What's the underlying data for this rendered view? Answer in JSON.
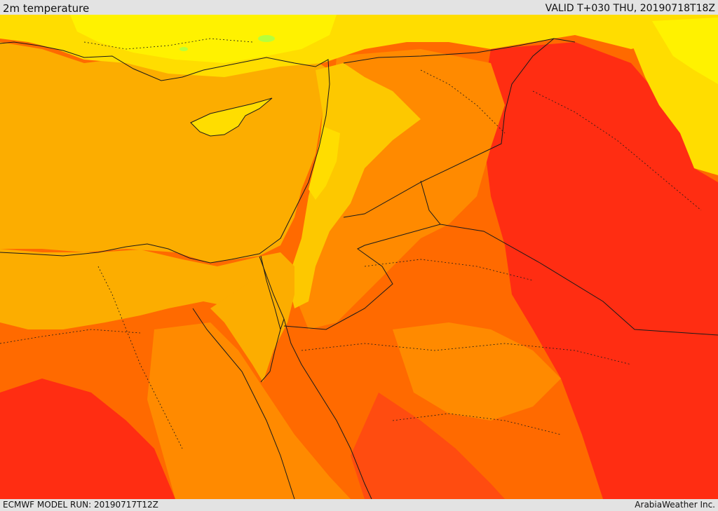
{
  "header": {
    "title": "2m temperature",
    "valid": "VALID T+030 THU, 20190718T18Z"
  },
  "footer": {
    "model_run": "ECMWF MODEL RUN: 20190717T12Z",
    "credit": "ArabiaWeather Inc."
  },
  "map": {
    "field": "2m temperature",
    "colors": {
      "sea_orange": "#fcad00",
      "cool_yellow": "#fff200",
      "light_yellow": "#ffdd00",
      "gold": "#fdc800",
      "orange": "#ff8a00",
      "deep_orange": "#ff6a00",
      "red_orange": "#ff4c10",
      "red": "#ff2d12",
      "green_spot": "#b6ff3c",
      "border_line": "#1a1a1a"
    }
  }
}
